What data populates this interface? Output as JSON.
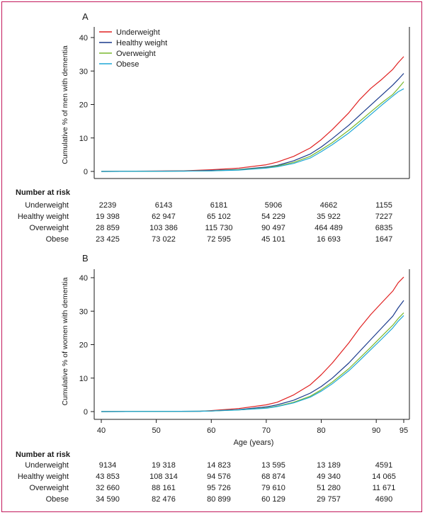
{
  "figure": {
    "border_color": "#c2185b"
  },
  "chart_data": [
    {
      "type": "line",
      "panel": "A",
      "title": "",
      "xlabel": "",
      "ylabel": "Cumulative % of men with dementia",
      "xlim": [
        40,
        95
      ],
      "ylim": [
        0,
        40
      ],
      "yticks": [
        "0",
        "10",
        "20",
        "30",
        "40"
      ],
      "legend_position": "top-left",
      "series": [
        {
          "name": "Underweight",
          "color": "#e02020",
          "x": [
            40,
            55,
            60,
            65,
            70,
            72,
            75,
            78,
            80,
            82,
            85,
            87,
            89,
            91,
            93,
            94,
            95
          ],
          "y": [
            0,
            0.2,
            0.5,
            1.0,
            2.0,
            2.8,
            4.5,
            7.0,
            9.5,
            12.5,
            17.5,
            21.5,
            24.8,
            27.5,
            30.5,
            32.5,
            34.3
          ]
        },
        {
          "name": "Healthy weight",
          "color": "#1a3a8c",
          "x": [
            40,
            55,
            60,
            65,
            70,
            72,
            75,
            78,
            80,
            82,
            85,
            87,
            89,
            91,
            93,
            94,
            95
          ],
          "y": [
            0,
            0.1,
            0.3,
            0.6,
            1.3,
            1.8,
            3.2,
            5.2,
            7.3,
            9.8,
            13.8,
            16.8,
            19.8,
            22.8,
            25.8,
            27.5,
            29.3
          ]
        },
        {
          "name": "Overweight",
          "color": "#7ab82e",
          "x": [
            40,
            55,
            60,
            65,
            70,
            72,
            75,
            78,
            80,
            82,
            85,
            87,
            89,
            91,
            93,
            94,
            95
          ],
          "y": [
            0,
            0.1,
            0.2,
            0.5,
            1.1,
            1.6,
            2.7,
            4.5,
            6.5,
            8.6,
            12.3,
            15.0,
            17.8,
            20.5,
            23.0,
            24.8,
            26.8
          ]
        },
        {
          "name": "Obese",
          "color": "#1ea7d6",
          "x": [
            40,
            55,
            60,
            65,
            70,
            72,
            75,
            78,
            80,
            82,
            85,
            87,
            89,
            91,
            93,
            94,
            95
          ],
          "y": [
            0,
            0.1,
            0.2,
            0.4,
            1.0,
            1.4,
            2.4,
            4.0,
            5.9,
            8.0,
            11.5,
            14.2,
            17.0,
            19.8,
            22.5,
            23.8,
            24.7
          ]
        }
      ],
      "risk_table": {
        "title": "Number at risk",
        "rows": [
          {
            "label": "Underweight",
            "values": [
              "2239",
              "6143",
              "6181",
              "5906",
              "4662",
              "1155"
            ]
          },
          {
            "label": "Healthy weight",
            "values": [
              "19 398",
              "62 947",
              "65 102",
              "54 229",
              "35 922",
              "7227"
            ]
          },
          {
            "label": "Overweight",
            "values": [
              "28 859",
              "103 386",
              "115 730",
              "90 497",
              "464 489",
              "6835"
            ]
          },
          {
            "label": "Obese",
            "values": [
              "23 425",
              "73 022",
              "72 595",
              "45 101",
              "16 693",
              "1647"
            ]
          }
        ]
      }
    },
    {
      "type": "line",
      "panel": "B",
      "title": "",
      "xlabel": "Age (years)",
      "ylabel": "Cumulative % of women with dementia",
      "xlim": [
        40,
        95
      ],
      "ylim": [
        0,
        40
      ],
      "xticks": [
        "40",
        "50",
        "60",
        "70",
        "80",
        "90",
        "95"
      ],
      "yticks": [
        "0",
        "10",
        "20",
        "30",
        "40"
      ],
      "series": [
        {
          "name": "Underweight",
          "color": "#e02020",
          "x": [
            40,
            58,
            60,
            65,
            70,
            72,
            75,
            78,
            80,
            82,
            85,
            87,
            89,
            91,
            93,
            94,
            95
          ],
          "y": [
            0,
            0.1,
            0.3,
            0.9,
            2.0,
            2.8,
            5.0,
            8.0,
            11.0,
            14.5,
            20.5,
            25.0,
            29.0,
            32.5,
            36.0,
            38.5,
            40.2
          ]
        },
        {
          "name": "Healthy weight",
          "color": "#1a3a8c",
          "x": [
            40,
            58,
            60,
            65,
            70,
            72,
            75,
            78,
            80,
            82,
            85,
            87,
            89,
            91,
            93,
            94,
            95
          ],
          "y": [
            0,
            0.1,
            0.2,
            0.6,
            1.4,
            2.0,
            3.4,
            5.5,
            7.5,
            10.0,
            14.5,
            18.0,
            21.5,
            25.0,
            28.5,
            31.0,
            33.2
          ]
        },
        {
          "name": "Overweight",
          "color": "#7ab82e",
          "x": [
            40,
            58,
            60,
            65,
            70,
            72,
            75,
            78,
            80,
            82,
            85,
            87,
            89,
            91,
            93,
            94,
            95
          ],
          "y": [
            0,
            0.1,
            0.2,
            0.5,
            1.1,
            1.6,
            2.8,
            4.6,
            6.5,
            8.8,
            12.8,
            16.0,
            19.2,
            22.5,
            25.8,
            27.8,
            29.5
          ]
        },
        {
          "name": "Obese",
          "color": "#1ea7d6",
          "x": [
            40,
            58,
            60,
            65,
            70,
            72,
            75,
            78,
            80,
            82,
            85,
            87,
            89,
            91,
            93,
            94,
            95
          ],
          "y": [
            0,
            0.1,
            0.2,
            0.5,
            1.0,
            1.5,
            2.6,
            4.3,
            6.1,
            8.3,
            12.2,
            15.3,
            18.5,
            21.7,
            25.0,
            27.0,
            28.7
          ]
        }
      ],
      "risk_table": {
        "title": "Number at risk",
        "rows": [
          {
            "label": "Underweight",
            "values": [
              "9134",
              "19 318",
              "14 823",
              "13 595",
              "13 189",
              "4591"
            ]
          },
          {
            "label": "Healthy weight",
            "values": [
              "43 853",
              "108 314",
              "94 576",
              "68 874",
              "49 340",
              "14 065"
            ]
          },
          {
            "label": "Overweight",
            "values": [
              "32 660",
              "88 161",
              "95 726",
              "79 610",
              "51 280",
              "11 671"
            ]
          },
          {
            "label": "Obese",
            "values": [
              "34 590",
              "82 476",
              "80 899",
              "60 129",
              "29 757",
              "4690"
            ]
          }
        ]
      }
    }
  ]
}
